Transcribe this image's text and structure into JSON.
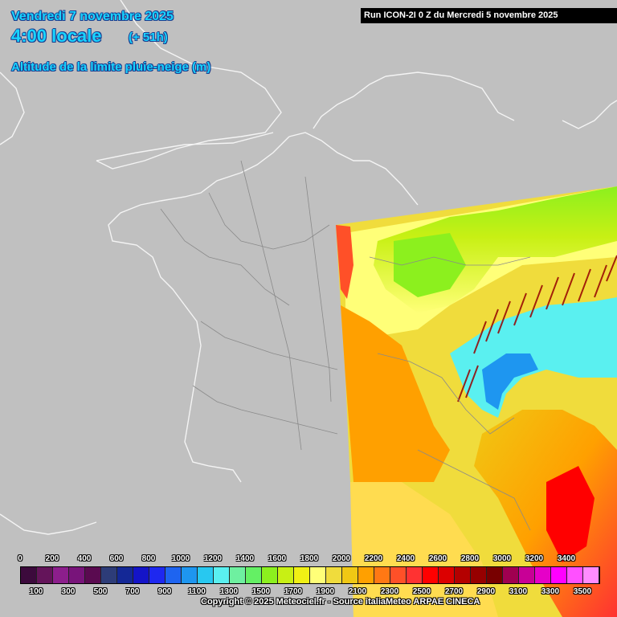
{
  "header": {
    "date": "Vendredi 7 novembre 2025",
    "time": "4:00 locale",
    "lead": "(+ 51h)",
    "parameter": "Altitude de la limite pluie-neige (m)"
  },
  "run_info": "Run ICON-2I 0 Z du Mercredi 5 novembre 2025",
  "legend": {
    "top_labels": [
      "0",
      "200",
      "400",
      "600",
      "800",
      "1000",
      "1200",
      "1400",
      "1600",
      "1800",
      "2000",
      "2200",
      "2400",
      "2600",
      "2800",
      "3000",
      "3200",
      "3400"
    ],
    "bottom_labels": [
      "100",
      "300",
      "500",
      "700",
      "900",
      "1100",
      "1300",
      "1500",
      "1700",
      "1900",
      "2100",
      "2300",
      "2500",
      "2700",
      "2900",
      "3100",
      "3300",
      "3500"
    ],
    "colors": [
      "#3c0a3c",
      "#64145a",
      "#8c1e8c",
      "#78147a",
      "#5a0a50",
      "#2d3c78",
      "#142896",
      "#1414c8",
      "#1e28f0",
      "#1e64f0",
      "#1e96f0",
      "#28c8f0",
      "#5af0f0",
      "#6ef0a0",
      "#64f064",
      "#8cf01e",
      "#c8f014",
      "#f0f014",
      "#ffff78",
      "#f0dc3c",
      "#f0c814",
      "#ffa000",
      "#ff7814",
      "#ff5028",
      "#ff3232",
      "#ff0000",
      "#dc0000",
      "#b40000",
      "#960000",
      "#780000",
      "#a00050",
      "#c80096",
      "#e600c8",
      "#ff00ff",
      "#ff50ff",
      "#ff8cff"
    ]
  },
  "copyright": "Copyright © 2025 Meteociel.fr - Source italiaMeteo ARPAE CINECA"
}
